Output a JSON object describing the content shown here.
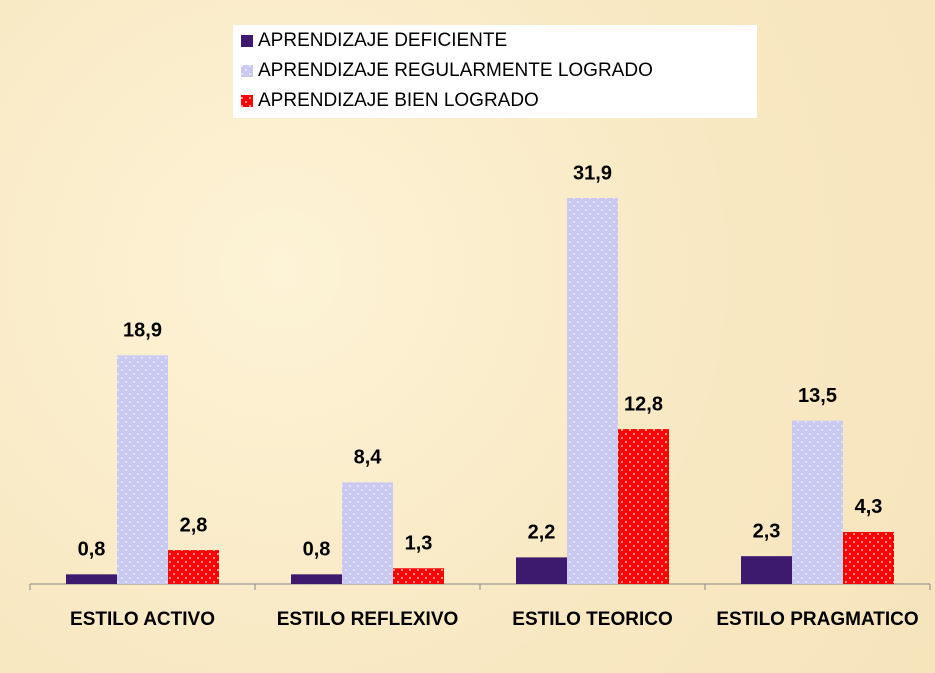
{
  "chart_data": {
    "type": "bar",
    "categories": [
      "ESTILO ACTIVO",
      "ESTILO REFLEXIVO",
      "ESTILO TEORICO",
      "ESTILO PRAGMATICO"
    ],
    "series": [
      {
        "name": "APRENDIZAJE DEFICIENTE",
        "color": "#3d1a6e",
        "values": [
          0.8,
          0.8,
          2.2,
          2.3
        ],
        "value_labels": [
          "0,8",
          "0,8",
          "2,2",
          "2,3"
        ]
      },
      {
        "name": "APRENDIZAJE REGULARMENTE LOGRADO",
        "color": "#c9c9f2",
        "values": [
          18.9,
          8.4,
          31.9,
          13.5
        ],
        "value_labels": [
          "18,9",
          "8,4",
          "31,9",
          "13,5"
        ]
      },
      {
        "name": "APRENDIZAJE BIEN LOGRADO",
        "color": "#ff0000",
        "values": [
          2.8,
          1.3,
          12.8,
          4.3
        ],
        "value_labels": [
          "2,8",
          "1,3",
          "12,8",
          "4,3"
        ]
      }
    ],
    "legend": "top"
  }
}
